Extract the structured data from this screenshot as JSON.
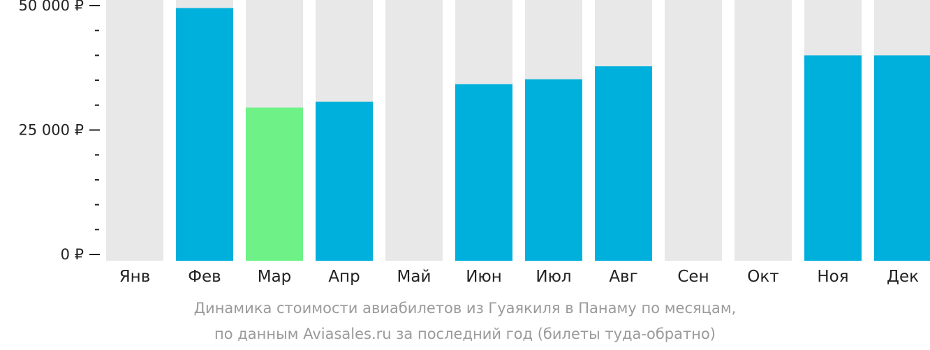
{
  "chart_data": {
    "type": "bar",
    "categories": [
      "Янв",
      "Фев",
      "Мар",
      "Апр",
      "Май",
      "Июн",
      "Июл",
      "Авг",
      "Сен",
      "Окт",
      "Ноя",
      "Дек"
    ],
    "values": [
      null,
      49500,
      29500,
      30700,
      null,
      34200,
      35200,
      37800,
      null,
      null,
      40000,
      40000
    ],
    "highlight_index": 2,
    "ylim": [
      0,
      50000
    ],
    "yticks": [
      {
        "value": 0,
        "label": "0 ₽"
      },
      {
        "value": 25000,
        "label": "25 000 ₽"
      },
      {
        "value": 50000,
        "label": "50 000 ₽"
      }
    ],
    "minor_tick_step": 5000,
    "colors": {
      "bar": "#00b0dc",
      "highlight": "#6ef287",
      "background_column": "#e8e8e8",
      "axis": "#222222"
    }
  },
  "caption": {
    "line1": "Динамика стоимости авиабилетов из Гуаякиля в Панаму по месяцам,",
    "line2": "по данным Aviasales.ru за последний год (билеты туда-обратно)"
  }
}
